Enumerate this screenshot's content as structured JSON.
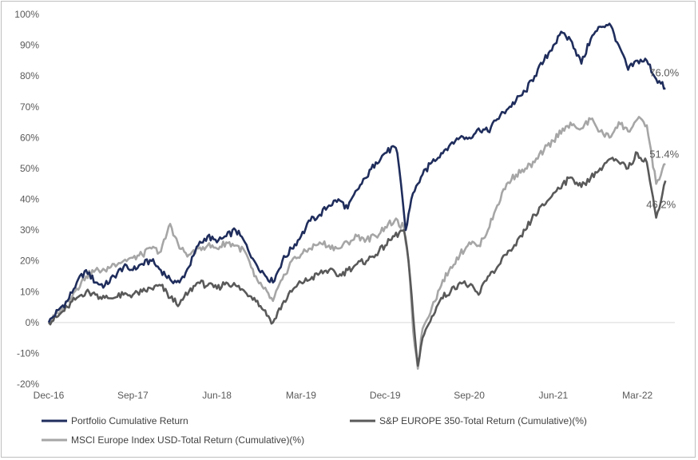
{
  "chart_data": {
    "type": "line",
    "y_axis": {
      "ticks": [
        -20,
        -10,
        0,
        10,
        20,
        30,
        40,
        50,
        60,
        70,
        80,
        90,
        100
      ],
      "tick_suffix": "%",
      "ylim": [
        -20,
        100
      ]
    },
    "x_axis": {
      "ticks": [
        "Dec-16",
        "Sep-17",
        "Jun-18",
        "Mar-19",
        "Dec-19",
        "Sep-20",
        "Jun-21",
        "Mar-22"
      ],
      "tick_positions": [
        0,
        9,
        18,
        27,
        36,
        45,
        54,
        63
      ],
      "xlim": [
        0,
        67
      ]
    },
    "grid": false,
    "legend_position": "bottom",
    "series": [
      {
        "name": "Portfolio Cumulative Return",
        "color": "#1f2d5c",
        "end_label": "76.0%",
        "points": [
          [
            0,
            0
          ],
          [
            1,
            4
          ],
          [
            2,
            7
          ],
          [
            3,
            13
          ],
          [
            4,
            17
          ],
          [
            5,
            13
          ],
          [
            6,
            12
          ],
          [
            7,
            15
          ],
          [
            8,
            18
          ],
          [
            9,
            17
          ],
          [
            10,
            19
          ],
          [
            11,
            20
          ],
          [
            12,
            17
          ],
          [
            13,
            14
          ],
          [
            14,
            13
          ],
          [
            15,
            18
          ],
          [
            16,
            25
          ],
          [
            17,
            28
          ],
          [
            18,
            26
          ],
          [
            19,
            28
          ],
          [
            20,
            30
          ],
          [
            21,
            26
          ],
          [
            22,
            20
          ],
          [
            23,
            16
          ],
          [
            24,
            13
          ],
          [
            25,
            20
          ],
          [
            26,
            24
          ],
          [
            27,
            28
          ],
          [
            28,
            33
          ],
          [
            29,
            35
          ],
          [
            30,
            38
          ],
          [
            31,
            40
          ],
          [
            32,
            37
          ],
          [
            33,
            43
          ],
          [
            34,
            47
          ],
          [
            35,
            52
          ],
          [
            36,
            55
          ],
          [
            37,
            57
          ],
          [
            37.3,
            55
          ],
          [
            37.7,
            45
          ],
          [
            38.2,
            30
          ],
          [
            38.8,
            40
          ],
          [
            39.5,
            45
          ],
          [
            40,
            48
          ],
          [
            41,
            52
          ],
          [
            42,
            55
          ],
          [
            43,
            58
          ],
          [
            44,
            60
          ],
          [
            45,
            60
          ],
          [
            46,
            63
          ],
          [
            47,
            62
          ],
          [
            48,
            66
          ],
          [
            49,
            69
          ],
          [
            50,
            72
          ],
          [
            51,
            75
          ],
          [
            52,
            80
          ],
          [
            53,
            85
          ],
          [
            54,
            90
          ],
          [
            55,
            94
          ],
          [
            56,
            91
          ],
          [
            57,
            84
          ],
          [
            58,
            92
          ],
          [
            59,
            96
          ],
          [
            60,
            97
          ],
          [
            61,
            90
          ],
          [
            62,
            82
          ],
          [
            63,
            85
          ],
          [
            64,
            85
          ],
          [
            65,
            79
          ],
          [
            66,
            76
          ]
        ]
      },
      {
        "name": "S&P EUROPE 350-Total Return (Cumulative)(%)",
        "color": "#595959",
        "end_label": "46.2%",
        "points": [
          [
            0,
            0
          ],
          [
            1,
            2
          ],
          [
            2,
            5
          ],
          [
            3,
            8
          ],
          [
            4,
            10
          ],
          [
            5,
            9
          ],
          [
            6,
            8
          ],
          [
            7,
            8
          ],
          [
            8,
            9
          ],
          [
            9,
            9
          ],
          [
            10,
            10
          ],
          [
            11,
            11
          ],
          [
            12,
            12
          ],
          [
            13,
            8
          ],
          [
            14,
            6
          ],
          [
            15,
            10
          ],
          [
            16,
            13
          ],
          [
            17,
            12
          ],
          [
            18,
            11
          ],
          [
            19,
            13
          ],
          [
            20,
            12
          ],
          [
            21,
            10
          ],
          [
            22,
            8
          ],
          [
            23,
            4
          ],
          [
            24,
            0
          ],
          [
            25,
            6
          ],
          [
            26,
            10
          ],
          [
            27,
            13
          ],
          [
            28,
            14
          ],
          [
            29,
            16
          ],
          [
            30,
            17
          ],
          [
            31,
            15
          ],
          [
            32,
            17
          ],
          [
            33,
            19
          ],
          [
            34,
            20
          ],
          [
            35,
            22
          ],
          [
            36,
            25
          ],
          [
            37,
            28
          ],
          [
            38,
            30
          ],
          [
            38.5,
            20
          ],
          [
            39,
            2
          ],
          [
            39.5,
            -14
          ],
          [
            40,
            -5
          ],
          [
            41,
            2
          ],
          [
            42,
            8
          ],
          [
            43,
            10
          ],
          [
            44,
            13
          ],
          [
            45,
            12
          ],
          [
            46,
            9
          ],
          [
            47,
            15
          ],
          [
            48,
            18
          ],
          [
            49,
            22
          ],
          [
            50,
            25
          ],
          [
            51,
            30
          ],
          [
            52,
            35
          ],
          [
            53,
            38
          ],
          [
            54,
            42
          ],
          [
            55,
            45
          ],
          [
            56,
            47
          ],
          [
            57,
            44
          ],
          [
            58,
            47
          ],
          [
            59,
            50
          ],
          [
            60,
            53
          ],
          [
            61,
            52
          ],
          [
            62,
            50
          ],
          [
            63,
            55
          ],
          [
            64,
            52
          ],
          [
            65,
            34
          ],
          [
            66,
            46
          ]
        ]
      },
      {
        "name": "MSCI Europe Index USD-Total Return (Cumulative)(%)",
        "color": "#a6a6a6",
        "end_label": "51.4%",
        "points": [
          [
            0,
            0
          ],
          [
            1,
            3
          ],
          [
            2,
            7
          ],
          [
            3,
            11
          ],
          [
            4,
            15
          ],
          [
            5,
            17
          ],
          [
            6,
            17
          ],
          [
            7,
            19
          ],
          [
            8,
            20
          ],
          [
            9,
            21
          ],
          [
            10,
            22
          ],
          [
            11,
            24
          ],
          [
            12,
            23
          ],
          [
            13,
            32
          ],
          [
            14,
            24
          ],
          [
            15,
            22
          ],
          [
            16,
            24
          ],
          [
            17,
            25
          ],
          [
            18,
            24
          ],
          [
            19,
            26
          ],
          [
            20,
            25
          ],
          [
            21,
            23
          ],
          [
            22,
            15
          ],
          [
            23,
            11
          ],
          [
            24,
            7
          ],
          [
            25,
            14
          ],
          [
            26,
            20
          ],
          [
            27,
            22
          ],
          [
            28,
            24
          ],
          [
            29,
            26
          ],
          [
            30,
            25
          ],
          [
            31,
            24
          ],
          [
            32,
            26
          ],
          [
            33,
            28
          ],
          [
            34,
            27
          ],
          [
            35,
            28
          ],
          [
            36,
            31
          ],
          [
            37,
            33
          ],
          [
            38,
            31
          ],
          [
            38.5,
            20
          ],
          [
            39,
            -3
          ],
          [
            39.5,
            -15
          ],
          [
            40,
            -2
          ],
          [
            41,
            5
          ],
          [
            42,
            12
          ],
          [
            43,
            18
          ],
          [
            44,
            22
          ],
          [
            45,
            26
          ],
          [
            46,
            25
          ],
          [
            47,
            30
          ],
          [
            48,
            38
          ],
          [
            49,
            45
          ],
          [
            50,
            48
          ],
          [
            51,
            50
          ],
          [
            52,
            52
          ],
          [
            53,
            56
          ],
          [
            54,
            59
          ],
          [
            55,
            63
          ],
          [
            56,
            64
          ],
          [
            57,
            63
          ],
          [
            58,
            66
          ],
          [
            59,
            62
          ],
          [
            60,
            60
          ],
          [
            61,
            65
          ],
          [
            62,
            62
          ],
          [
            63,
            66
          ],
          [
            64,
            64
          ],
          [
            65,
            45
          ],
          [
            66,
            51.4
          ]
        ]
      }
    ]
  }
}
